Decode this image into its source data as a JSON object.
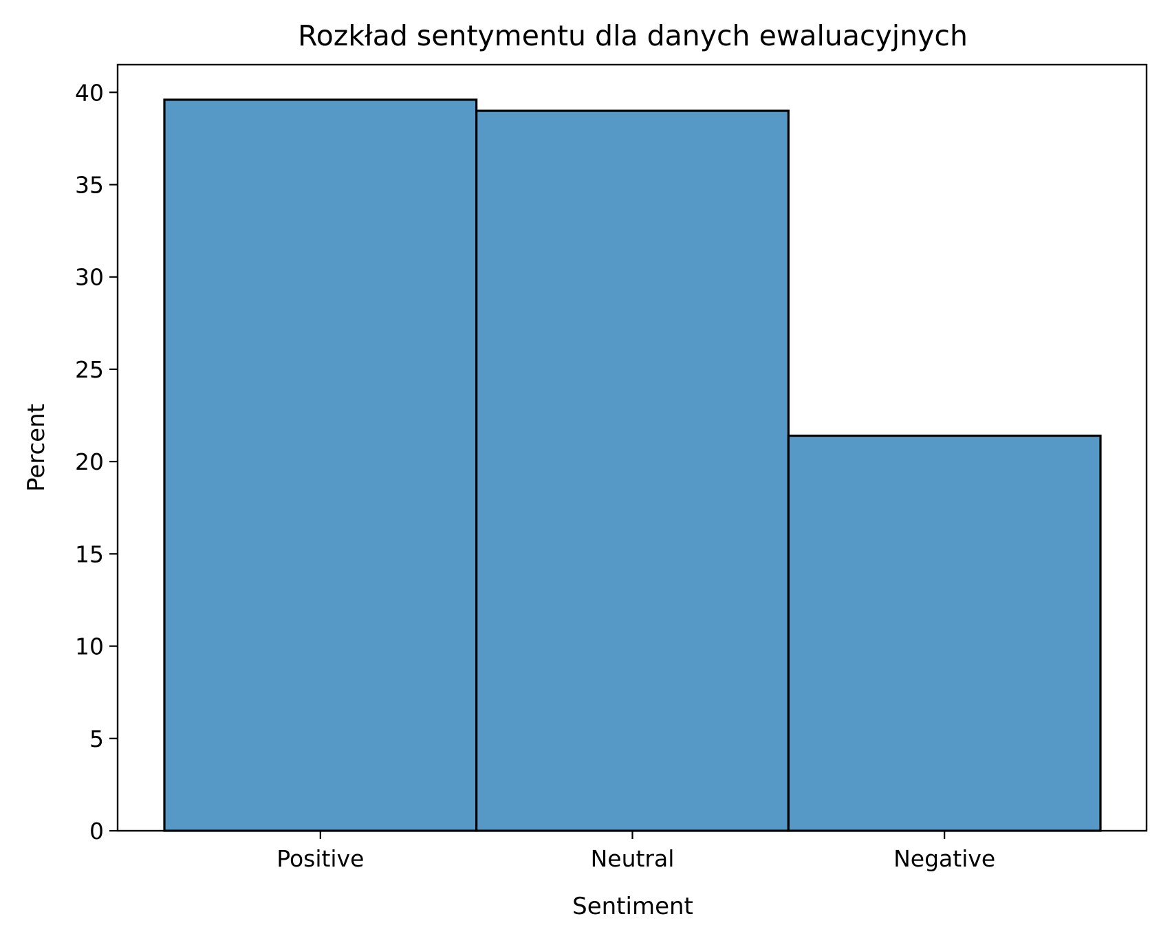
{
  "chart_data": {
    "type": "bar",
    "title": "Rozkład sentymentu dla danych ewaluacyjnych",
    "xlabel": "Sentiment",
    "ylabel": "Percent",
    "categories": [
      "Positive",
      "Neutral",
      "Negative"
    ],
    "values": [
      39.6,
      39.0,
      21.4
    ],
    "ylim": [
      0,
      41.5
    ],
    "yticks": [
      0,
      5,
      10,
      15,
      20,
      25,
      30,
      35,
      40
    ],
    "bar_color": "#5799c6",
    "edge_color": "#000000",
    "grid": false,
    "legend": "none"
  }
}
